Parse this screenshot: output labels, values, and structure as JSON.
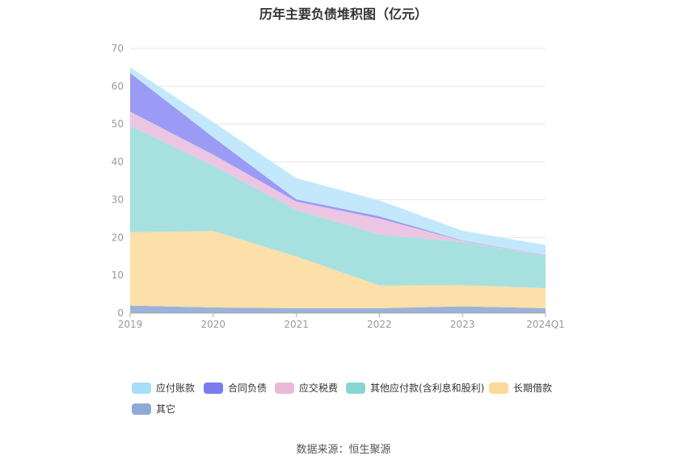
{
  "chart_data": {
    "type": "area",
    "title": "历年主要负债堆积图（亿元）",
    "categories": [
      "2019",
      "2020",
      "2021",
      "2022",
      "2023",
      "2024Q1"
    ],
    "ylim": [
      0,
      70
    ],
    "yticks": [
      0,
      10,
      20,
      30,
      40,
      50,
      60,
      70
    ],
    "grid": true,
    "legend_position": "bottom",
    "series": [
      {
        "name": "其它",
        "color": "#9ab3d9",
        "values": [
          2.0,
          1.5,
          1.3,
          1.3,
          1.8,
          1.3
        ]
      },
      {
        "name": "长期借款",
        "color": "#fddfa9",
        "values": [
          19.4,
          20.2,
          13.7,
          6.0,
          5.6,
          5.3
        ]
      },
      {
        "name": "其他应付款(含利息和股利)",
        "color": "#a6e1df",
        "values": [
          28.2,
          17.3,
          12.3,
          13.5,
          11.4,
          8.5
        ]
      },
      {
        "name": "应交税费",
        "color": "#ecc5e2",
        "values": [
          3.7,
          2.9,
          2.2,
          4.2,
          0.3,
          0.1
        ]
      },
      {
        "name": "合同负债",
        "color": "#9b9bf5",
        "values": [
          10.2,
          4.6,
          0.6,
          0.6,
          0.1,
          0.1
        ]
      },
      {
        "name": "应付账款",
        "color": "#c3e8fb",
        "values": [
          1.5,
          4.0,
          5.6,
          4.2,
          2.6,
          2.7
        ]
      }
    ],
    "legend_order": [
      "应付账款",
      "合同负债",
      "应交税费",
      "其他应付款(含利息和股利)",
      "长期借款",
      "其它"
    ],
    "legend_colors": {
      "应付账款": "#a7ddf8",
      "合同负债": "#7b7bef",
      "应交税费": "#e9b9dc",
      "其他应付款(含利息和股利)": "#86d6d3",
      "长期借款": "#fdd899",
      "其它": "#8eabd6"
    }
  },
  "footer": {
    "source_label": "数据来源：",
    "source_name": "恒生聚源"
  }
}
